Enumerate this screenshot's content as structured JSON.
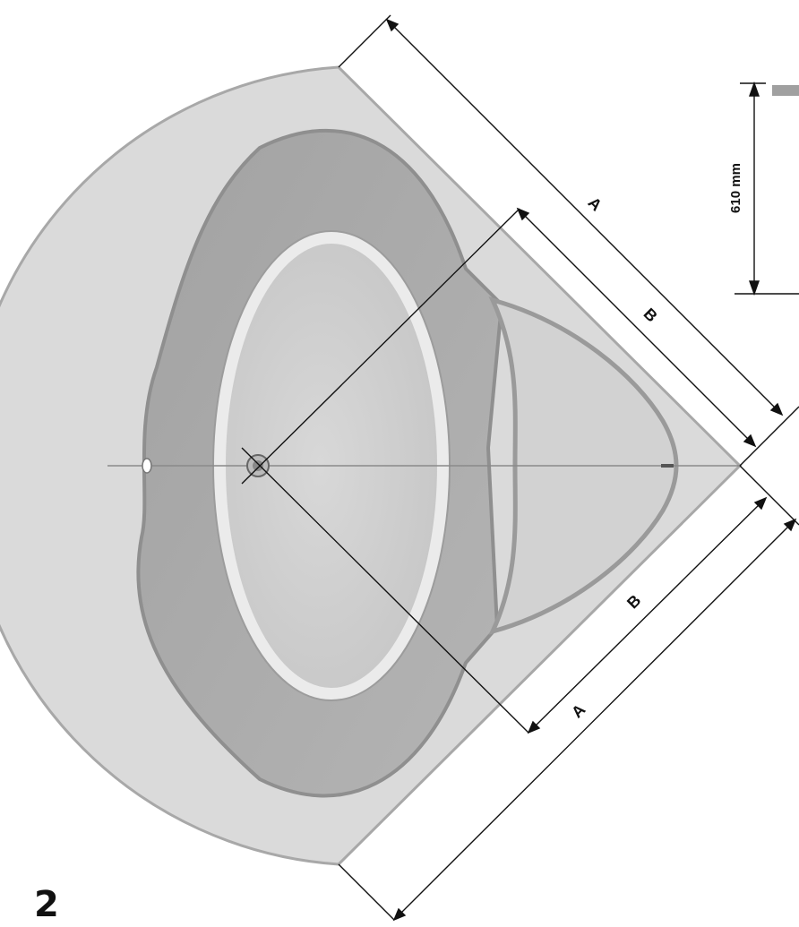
{
  "figure_number": "2",
  "dimension_labels": {
    "outer_top": "A",
    "inner_top": "B",
    "inner_bottom": "B",
    "outer_bottom": "A"
  },
  "height_label": "610 mm",
  "colors": {
    "tub_fill": "#d6d6d6",
    "seat_fill": "#a9a9a9",
    "basin_fill": "#cfcfcf",
    "line": "#111111"
  }
}
